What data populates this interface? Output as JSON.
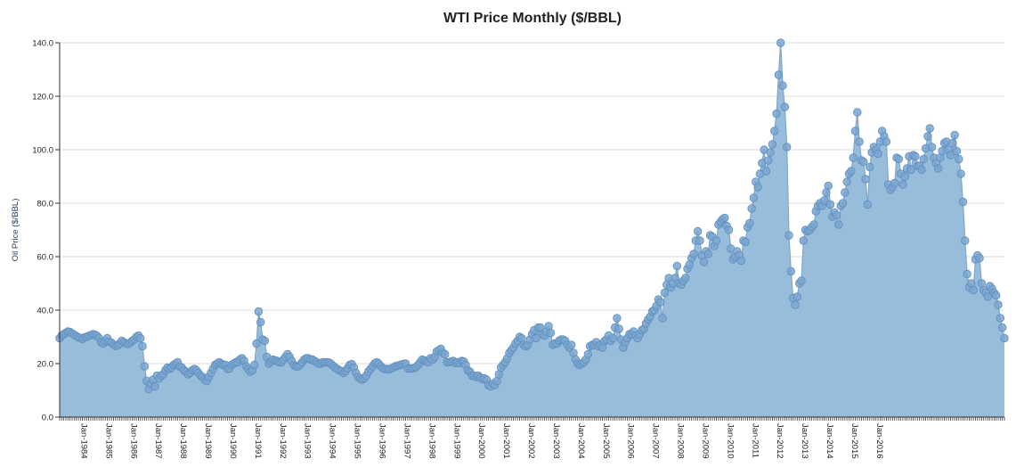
{
  "chart_data": {
    "type": "area",
    "title": "WTI Price Monthly ($/BBL)",
    "ylabel": "Oil Price ($/BBL)",
    "xlabel": "",
    "ylim": [
      0,
      140
    ],
    "yticks": [
      "0.0",
      "20.0",
      "40.0",
      "60.0",
      "80.0",
      "100.0",
      "120.0",
      "140.0"
    ],
    "x_tick_labels": [
      "Jan-1984",
      "Jan-1985",
      "Jan-1986",
      "Jan-1987",
      "Jan-1988",
      "Jan-1989",
      "Jan-1990",
      "Jan-1991",
      "Jan-1992",
      "Jan-1993",
      "Jan-1994",
      "Jan-1995",
      "Jan-1996",
      "Jan-1997",
      "Jan-1998",
      "Jan-1999",
      "Jan-2000",
      "Jan-2001",
      "Jan-2002",
      "Jan-2003",
      "Jan-2004",
      "Jan-2005",
      "Jan-2006",
      "Jan-2007",
      "Jan-2008",
      "Jan-2009",
      "Jan-2010",
      "Jan-2011",
      "Jan-2012",
      "Jan-2013",
      "Jan-2014",
      "Jan-2015",
      "Jan-2016"
    ],
    "grid": "horizontal",
    "colors": {
      "fill": "#98bddb",
      "stroke": "#7ea7cc",
      "point": "#7aa6d0",
      "point_stroke": "#5f8fbd"
    },
    "series": [
      {
        "start": "1983-04",
        "frequency": "monthly",
        "values": [
          29.5,
          30.5,
          31,
          31.5,
          32,
          31.8,
          31.3,
          30.8,
          30.3,
          29.8,
          29.6,
          29.2,
          29.8,
          30,
          30.4,
          30.6,
          31,
          30.8,
          30.4,
          29.6,
          28,
          27.5,
          28.5,
          29.5,
          28.2,
          27.8,
          27.2,
          26.6,
          26.8,
          27.5,
          28.5,
          28,
          27.6,
          27.3,
          27.8,
          28.5,
          29,
          30,
          30.5,
          29.5,
          26.5,
          19,
          13.5,
          10.5,
          12.5,
          14,
          11.5,
          15.5,
          14.5,
          15.5,
          16,
          17.5,
          18.5,
          18,
          18.5,
          19.5,
          20,
          20.5,
          18.8,
          18.5,
          17.5,
          17,
          16,
          16.5,
          17.5,
          18,
          17.5,
          16.5,
          15.5,
          15,
          14,
          13.5,
          15,
          16.5,
          18,
          19.5,
          20,
          20.5,
          20,
          19.5,
          19.5,
          18,
          18.2,
          19.5,
          20,
          20.5,
          20.5,
          21.5,
          22,
          21,
          19,
          18,
          17,
          17.5,
          19.5,
          27.5,
          39.5,
          35.5,
          29,
          28.5,
          22.5,
          20,
          20.8,
          21.5,
          21.2,
          21,
          20.5,
          20.5,
          21.5,
          22.5,
          23.5,
          22.5,
          21,
          19.5,
          19,
          19,
          19.5,
          20.5,
          21.5,
          22,
          22,
          21.5,
          21.5,
          21,
          20.5,
          20,
          20,
          20.5,
          20.5,
          20.5,
          20.4,
          19.9,
          19.2,
          18.5,
          18,
          17.5,
          17.2,
          16.5,
          17.2,
          18.3,
          19.5,
          19.8,
          18.5,
          16.5,
          15,
          14.5,
          14,
          14.5,
          15.5,
          17,
          18,
          19,
          20,
          20.5,
          20,
          19,
          18.3,
          18,
          18,
          17.8,
          18.2,
          18.5,
          19,
          19.2,
          19.4,
          19.7,
          19.9,
          20,
          18.2,
          18.1,
          18.2,
          18.3,
          18.7,
          19.5,
          20.5,
          21.5,
          21.2,
          20.8,
          20.5,
          22,
          21.5,
          22.5,
          24.5,
          25,
          25.5,
          24,
          23.5,
          20.5,
          20.5,
          20.8,
          21,
          20.2,
          20.5,
          20.2,
          21,
          20.8,
          19.5,
          17.5,
          17,
          15.5,
          15.5,
          15,
          15.5,
          14.8,
          14.2,
          14.5,
          14,
          12,
          11.5,
          12.5,
          12,
          13.5,
          16,
          18.5,
          19.5,
          20.5,
          22,
          24,
          25,
          26,
          27.5,
          28.5,
          30,
          29.5,
          27,
          26.5,
          27,
          29,
          31,
          32.5,
          29.5,
          33.5,
          33.5,
          31,
          30.5,
          32,
          34,
          31.5,
          27,
          27.5,
          27.5,
          28.5,
          29,
          29,
          28.5,
          27,
          26,
          27,
          24,
          21.5,
          20,
          19.5,
          20,
          20.5,
          21.5,
          23.5,
          26.5,
          27,
          27,
          28,
          26.5,
          27,
          26,
          28.5,
          29,
          30.5,
          28.5,
          29.5,
          33.5,
          37,
          33,
          29,
          26,
          28,
          29.5,
          31,
          31,
          32,
          30.5,
          29.5,
          31,
          32.5,
          33,
          35,
          36.5,
          37.5,
          39.5,
          40,
          41.5,
          44,
          43,
          37,
          46.5,
          49.5,
          52,
          48.5,
          50,
          52,
          56.5,
          50,
          49.5,
          51,
          52,
          55.5,
          57,
          59.5,
          61,
          66,
          69.5,
          66,
          60.5,
          58,
          62,
          61,
          68,
          67.5,
          64,
          66,
          72,
          73,
          74,
          74.5,
          71.5,
          70,
          63,
          59,
          60,
          62,
          60.5,
          58.5,
          66,
          65.5,
          71,
          72.5,
          78,
          82,
          88,
          86,
          91,
          95,
          100,
          92,
          96,
          99,
          102,
          107,
          113.5,
          128,
          140,
          124,
          116,
          101,
          68,
          54.5,
          44.5,
          42,
          45,
          50,
          51,
          66,
          70,
          69.5,
          70,
          71,
          72,
          77,
          79,
          80,
          79,
          81,
          84,
          86.5,
          79.5,
          75,
          76.5,
          75.5,
          72,
          79,
          80,
          84,
          88,
          91,
          92,
          97,
          107,
          114,
          103,
          96,
          95.5,
          89,
          79.5,
          93.5,
          99,
          101,
          100,
          98.5,
          103,
          107,
          105,
          103,
          87,
          85,
          86,
          87.5,
          97,
          96.5,
          91,
          87,
          90,
          93,
          97.5,
          92.5,
          98,
          97.5,
          94,
          94,
          92.5,
          96.5,
          100.5,
          105,
          108,
          101,
          97,
          95,
          93,
          97,
          99.5,
          102.5,
          103,
          100,
          98,
          102.5,
          105.5,
          99.5,
          96.5,
          91,
          80.5,
          66,
          53.5,
          48.5,
          50,
          47.5,
          59,
          60.5,
          59.5,
          50,
          47.5,
          46.5,
          45,
          49,
          48,
          46.5,
          45.5,
          42,
          37,
          33.5,
          29.5
        ]
      }
    ]
  }
}
